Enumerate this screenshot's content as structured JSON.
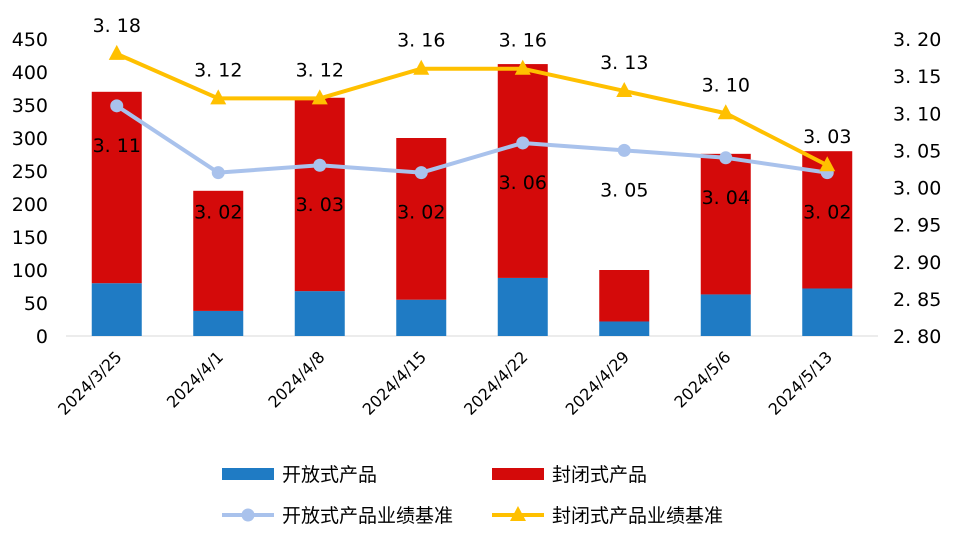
{
  "chart_data": {
    "type": "bar",
    "categories": [
      "2024/3/25",
      "2024/4/1",
      "2024/4/8",
      "2024/4/15",
      "2024/4/22",
      "2024/4/29",
      "2024/5/6",
      "2024/5/13"
    ],
    "stacked": true,
    "series": [
      {
        "name": "开放式产品",
        "type": "bar",
        "axis": "left",
        "color": "#1f7bc4",
        "values": [
          80,
          38,
          68,
          55,
          88,
          22,
          63,
          72
        ]
      },
      {
        "name": "封闭式产品",
        "type": "bar",
        "axis": "left",
        "color": "#d40a0a",
        "values": [
          290,
          182,
          293,
          245,
          324,
          78,
          213,
          208
        ]
      },
      {
        "name": "开放式产品业绩基准",
        "type": "line",
        "axis": "right",
        "color": "#a9c2ec",
        "marker": "circle",
        "values": [
          3.11,
          3.02,
          3.03,
          3.02,
          3.06,
          3.05,
          3.04,
          3.02
        ],
        "labels": [
          "3. 11",
          "3. 02",
          "3. 03",
          "3. 02",
          "3. 06",
          "3. 05",
          "3. 04",
          "3. 02"
        ]
      },
      {
        "name": "封闭式产品业绩基准",
        "type": "line",
        "axis": "right",
        "color": "#ffc000",
        "marker": "triangle",
        "values": [
          3.18,
          3.12,
          3.12,
          3.16,
          3.16,
          3.13,
          3.1,
          3.03
        ],
        "labels": [
          "3. 18",
          "3. 12",
          "3. 12",
          "3. 16",
          "3. 16",
          "3. 13",
          "3. 10",
          "3. 03"
        ]
      }
    ],
    "ylim": [
      0,
      450
    ],
    "yticks": [
      "0",
      "50",
      "100",
      "150",
      "200",
      "250",
      "300",
      "350",
      "400",
      "450"
    ],
    "y2lim": [
      2.8,
      3.2
    ],
    "y2ticks": [
      "2. 80",
      "2. 85",
      "2. 90",
      "2. 95",
      "3. 00",
      "3. 05",
      "3. 10",
      "3. 15",
      "3. 20"
    ],
    "grid": false,
    "legend_position": "bottom"
  }
}
